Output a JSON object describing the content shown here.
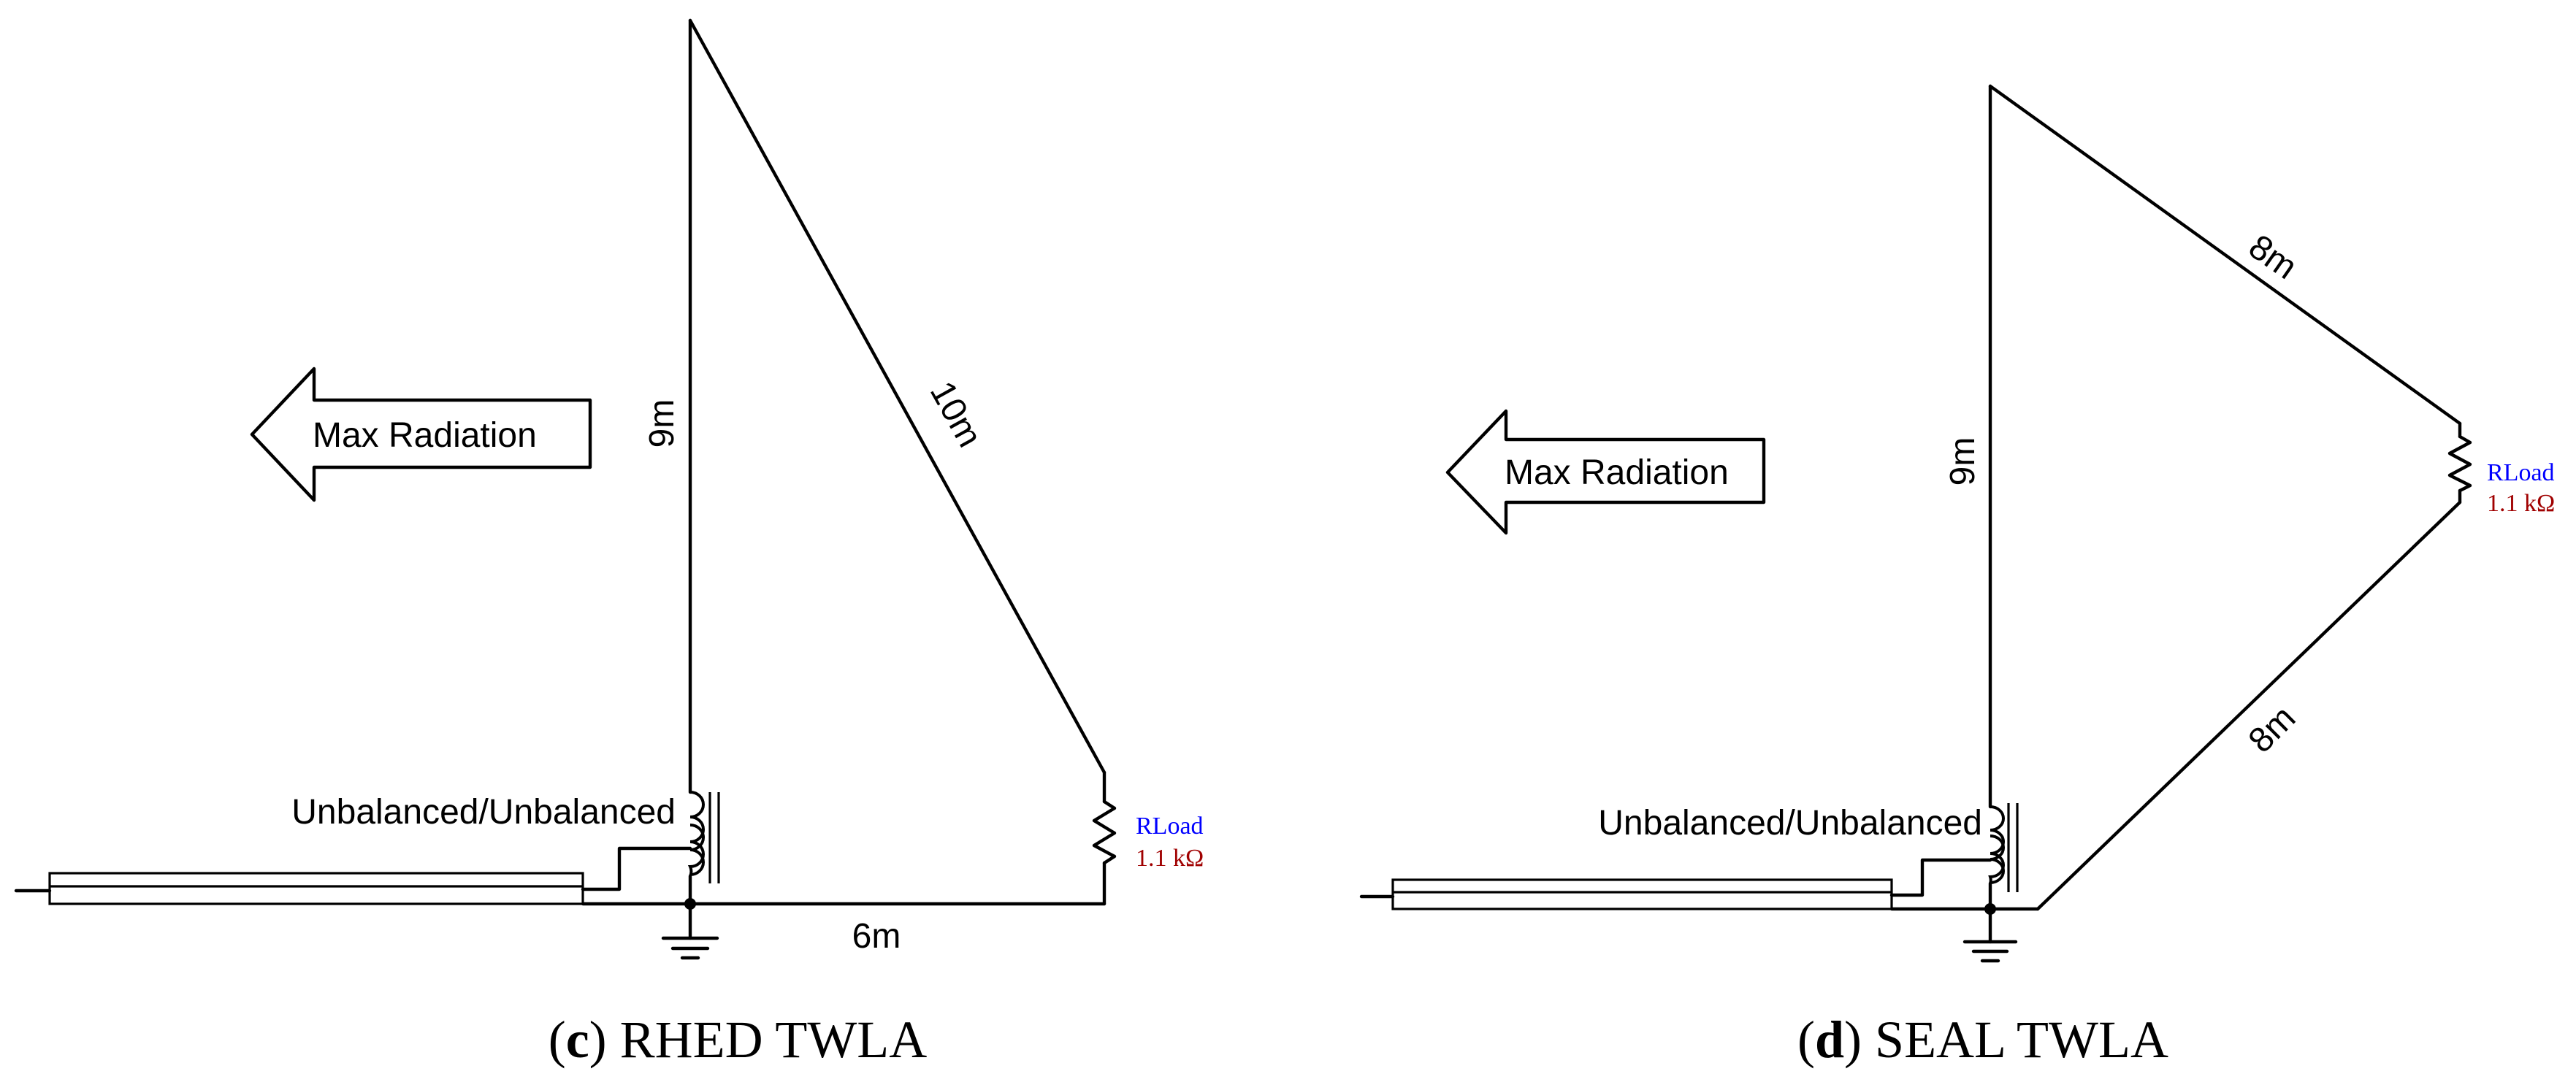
{
  "colors": {
    "line": "#000000",
    "rload_label": "#0000ff",
    "rload_value": "#a00000",
    "background": "#ffffff"
  },
  "panel_c": {
    "caption_letter": "c",
    "caption_text": "RHED TWLA",
    "arrow_label": "Max Radiation",
    "vertical_length": "9m",
    "diagonal_length": "10m",
    "bottom_length": "6m",
    "transformer_label": "Unbalanced/Unbalanced",
    "load_name": "RLoad",
    "load_value": "1.1 kΩ",
    "icons": [
      "arrow-left-icon",
      "transformer-icon",
      "resistor-icon",
      "ground-icon",
      "coax-cable-icon"
    ]
  },
  "panel_d": {
    "caption_letter": "d",
    "caption_text": "SEAL TWLA",
    "arrow_label": "Max Radiation",
    "vertical_length": "9m",
    "upper_diagonal_length": "8m",
    "lower_diagonal_length": "8m",
    "transformer_label": "Unbalanced/Unbalanced",
    "load_name": "RLoad",
    "load_value": "1.1 kΩ",
    "icons": [
      "arrow-left-icon",
      "transformer-icon",
      "resistor-icon",
      "ground-icon",
      "coax-cable-icon"
    ]
  }
}
